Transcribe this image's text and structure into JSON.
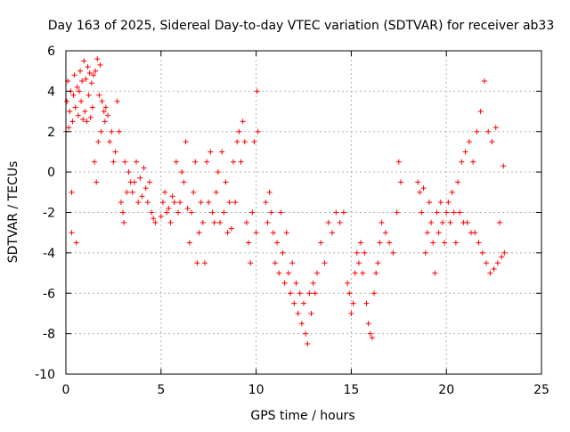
{
  "chart_data": {
    "type": "scatter",
    "title": "Day 163 of 2025, Sidereal Day-to-day VTEC variation (SDTVAR) for receiver ab33",
    "xlabel": "GPS time / hours",
    "ylabel": "SDTVAR / TECUs",
    "xlim": [
      0,
      25
    ],
    "ylim": [
      -10,
      6
    ],
    "x_ticks": [
      0,
      5,
      10,
      15,
      20,
      25
    ],
    "y_ticks": [
      -10,
      -8,
      -6,
      -4,
      -2,
      0,
      2,
      4,
      6
    ],
    "x_tick_labels": [
      "0",
      "5",
      "10",
      "15",
      "20",
      "25"
    ],
    "y_tick_labels": [
      "-10",
      "-8",
      "-6",
      "-4",
      "-2",
      "0",
      "2",
      "4",
      "6"
    ],
    "grid": true,
    "marker": "+",
    "color": "#ff0000",
    "series": [
      {
        "name": "SDTVAR",
        "points": [
          [
            0.0,
            2.0
          ],
          [
            0.05,
            3.5
          ],
          [
            0.1,
            4.5
          ],
          [
            0.15,
            2.2
          ],
          [
            0.2,
            3.0
          ],
          [
            0.25,
            4.0
          ],
          [
            0.3,
            -1.0
          ],
          [
            0.3,
            -3.0
          ],
          [
            0.35,
            2.5
          ],
          [
            0.4,
            3.8
          ],
          [
            0.45,
            4.8
          ],
          [
            0.5,
            3.2
          ],
          [
            0.55,
            -3.5
          ],
          [
            0.6,
            4.2
          ],
          [
            0.65,
            2.8
          ],
          [
            0.7,
            4.0
          ],
          [
            0.75,
            5.0
          ],
          [
            0.8,
            3.5
          ],
          [
            0.85,
            4.5
          ],
          [
            0.9,
            2.6
          ],
          [
            0.95,
            5.5
          ],
          [
            1.0,
            3.0
          ],
          [
            1.05,
            4.6
          ],
          [
            1.1,
            2.5
          ],
          [
            1.15,
            5.2
          ],
          [
            1.2,
            3.8
          ],
          [
            1.25,
            4.9
          ],
          [
            1.3,
            2.7
          ],
          [
            1.35,
            4.4
          ],
          [
            1.4,
            3.2
          ],
          [
            1.45,
            4.8
          ],
          [
            1.5,
            0.5
          ],
          [
            1.55,
            5.0
          ],
          [
            1.6,
            -0.5
          ],
          [
            1.65,
            5.6
          ],
          [
            1.7,
            1.5
          ],
          [
            1.75,
            3.8
          ],
          [
            1.8,
            5.3
          ],
          [
            1.85,
            2.0
          ],
          [
            1.9,
            3.5
          ],
          [
            2.0,
            3.0
          ],
          [
            2.05,
            2.5
          ],
          [
            2.1,
            3.2
          ],
          [
            2.2,
            2.8
          ],
          [
            2.3,
            1.5
          ],
          [
            2.4,
            2.0
          ],
          [
            2.5,
            0.5
          ],
          [
            2.6,
            1.0
          ],
          [
            2.7,
            3.5
          ],
          [
            2.8,
            2.0
          ],
          [
            2.9,
            -1.5
          ],
          [
            3.0,
            -2.0
          ],
          [
            3.05,
            -2.5
          ],
          [
            3.1,
            0.5
          ],
          [
            3.2,
            -1.0
          ],
          [
            3.3,
            0.0
          ],
          [
            3.4,
            -0.5
          ],
          [
            3.5,
            -1.0
          ],
          [
            3.6,
            -0.5
          ],
          [
            3.7,
            0.5
          ],
          [
            3.8,
            -1.5
          ],
          [
            3.9,
            -0.3
          ],
          [
            4.0,
            -1.2
          ],
          [
            4.1,
            0.2
          ],
          [
            4.2,
            -0.8
          ],
          [
            4.3,
            -1.5
          ],
          [
            4.4,
            -0.5
          ],
          [
            4.5,
            -2.0
          ],
          [
            4.6,
            -2.3
          ],
          [
            4.7,
            -2.5
          ],
          [
            5.0,
            -2.2
          ],
          [
            5.1,
            -1.5
          ],
          [
            5.2,
            -1.0
          ],
          [
            5.3,
            -2.0
          ],
          [
            5.4,
            -1.8
          ],
          [
            5.5,
            -2.5
          ],
          [
            5.6,
            -1.2
          ],
          [
            5.7,
            -1.5
          ],
          [
            5.8,
            0.5
          ],
          [
            5.9,
            -2.0
          ],
          [
            6.0,
            -1.5
          ],
          [
            6.1,
            0.0
          ],
          [
            6.2,
            -0.5
          ],
          [
            6.3,
            1.5
          ],
          [
            6.4,
            -1.8
          ],
          [
            6.5,
            -3.5
          ],
          [
            6.6,
            -2.0
          ],
          [
            6.7,
            -1.0
          ],
          [
            6.8,
            0.5
          ],
          [
            6.9,
            -4.5
          ],
          [
            7.0,
            -3.0
          ],
          [
            7.1,
            -1.5
          ],
          [
            7.2,
            -2.5
          ],
          [
            7.3,
            -4.5
          ],
          [
            7.4,
            0.5
          ],
          [
            7.5,
            -1.5
          ],
          [
            7.6,
            1.0
          ],
          [
            7.7,
            -2.0
          ],
          [
            7.8,
            -2.5
          ],
          [
            7.9,
            -1.0
          ],
          [
            8.0,
            0.0
          ],
          [
            8.1,
            -2.5
          ],
          [
            8.2,
            1.0
          ],
          [
            8.3,
            -2.0
          ],
          [
            8.4,
            -0.5
          ],
          [
            8.5,
            -3.0
          ],
          [
            8.6,
            -1.5
          ],
          [
            8.7,
            -2.8
          ],
          [
            8.8,
            0.5
          ],
          [
            8.9,
            -1.5
          ],
          [
            9.0,
            1.5
          ],
          [
            9.1,
            2.0
          ],
          [
            9.2,
            0.5
          ],
          [
            9.3,
            2.5
          ],
          [
            9.4,
            1.5
          ],
          [
            9.5,
            -2.5
          ],
          [
            9.6,
            -3.5
          ],
          [
            9.7,
            -4.5
          ],
          [
            9.8,
            -2.0
          ],
          [
            9.9,
            1.5
          ],
          [
            10.0,
            -3.0
          ],
          [
            10.05,
            4.0
          ],
          [
            10.1,
            2.0
          ],
          [
            10.5,
            -1.5
          ],
          [
            10.6,
            -2.5
          ],
          [
            10.7,
            -1.0
          ],
          [
            10.8,
            -2.0
          ],
          [
            10.9,
            -3.0
          ],
          [
            11.0,
            -4.5
          ],
          [
            11.1,
            -3.5
          ],
          [
            11.2,
            -5.0
          ],
          [
            11.3,
            -2.0
          ],
          [
            11.4,
            -4.0
          ],
          [
            11.5,
            -5.5
          ],
          [
            11.6,
            -3.0
          ],
          [
            11.7,
            -5.0
          ],
          [
            11.8,
            -6.0
          ],
          [
            11.9,
            -4.5
          ],
          [
            12.0,
            -6.5
          ],
          [
            12.1,
            -5.5
          ],
          [
            12.2,
            -7.0
          ],
          [
            12.3,
            -6.0
          ],
          [
            12.4,
            -7.5
          ],
          [
            12.5,
            -6.5
          ],
          [
            12.6,
            -8.0
          ],
          [
            12.7,
            -8.5
          ],
          [
            12.8,
            -6.0
          ],
          [
            12.9,
            -7.0
          ],
          [
            13.0,
            -5.5
          ],
          [
            13.1,
            -6.0
          ],
          [
            13.2,
            -5.0
          ],
          [
            13.4,
            -3.5
          ],
          [
            13.6,
            -4.5
          ],
          [
            13.8,
            -2.5
          ],
          [
            14.0,
            -3.0
          ],
          [
            14.2,
            -2.0
          ],
          [
            14.4,
            -2.5
          ],
          [
            14.6,
            -2.0
          ],
          [
            14.8,
            -5.5
          ],
          [
            14.9,
            -6.0
          ],
          [
            15.0,
            -7.0
          ],
          [
            15.1,
            -6.5
          ],
          [
            15.2,
            -5.0
          ],
          [
            15.3,
            -4.0
          ],
          [
            15.4,
            -4.5
          ],
          [
            15.5,
            -3.5
          ],
          [
            15.6,
            -5.0
          ],
          [
            15.7,
            -4.0
          ],
          [
            15.8,
            -6.5
          ],
          [
            15.9,
            -7.5
          ],
          [
            16.0,
            -8.0
          ],
          [
            16.1,
            -8.2
          ],
          [
            16.2,
            -6.0
          ],
          [
            16.3,
            -5.0
          ],
          [
            16.4,
            -4.5
          ],
          [
            16.5,
            -3.5
          ],
          [
            16.6,
            -2.5
          ],
          [
            16.8,
            -3.0
          ],
          [
            17.0,
            -3.5
          ],
          [
            17.2,
            -4.0
          ],
          [
            17.4,
            -2.0
          ],
          [
            17.5,
            0.5
          ],
          [
            17.6,
            -0.5
          ],
          [
            18.5,
            -0.5
          ],
          [
            18.6,
            -1.0
          ],
          [
            18.7,
            -2.0
          ],
          [
            18.8,
            -0.8
          ],
          [
            18.9,
            -4.0
          ],
          [
            19.0,
            -3.0
          ],
          [
            19.1,
            -1.5
          ],
          [
            19.2,
            -2.5
          ],
          [
            19.3,
            -3.5
          ],
          [
            19.4,
            -5.0
          ],
          [
            19.5,
            -2.0
          ],
          [
            19.6,
            -3.0
          ],
          [
            19.7,
            -1.5
          ],
          [
            19.8,
            -2.5
          ],
          [
            19.9,
            -3.5
          ],
          [
            20.0,
            -2.0
          ],
          [
            20.1,
            -1.5
          ],
          [
            20.2,
            -2.5
          ],
          [
            20.3,
            -1.0
          ],
          [
            20.4,
            -2.0
          ],
          [
            20.5,
            -3.5
          ],
          [
            20.6,
            -0.5
          ],
          [
            20.7,
            -2.0
          ],
          [
            20.8,
            0.5
          ],
          [
            20.9,
            -2.5
          ],
          [
            21.0,
            1.0
          ],
          [
            21.1,
            -2.5
          ],
          [
            21.2,
            1.5
          ],
          [
            21.3,
            -3.0
          ],
          [
            21.4,
            0.5
          ],
          [
            21.5,
            -3.0
          ],
          [
            21.6,
            2.0
          ],
          [
            21.7,
            -3.5
          ],
          [
            21.8,
            3.0
          ],
          [
            21.9,
            -4.0
          ],
          [
            22.0,
            4.5
          ],
          [
            22.1,
            -4.5
          ],
          [
            22.2,
            2.0
          ],
          [
            22.3,
            -5.0
          ],
          [
            22.4,
            1.5
          ],
          [
            22.5,
            -4.8
          ],
          [
            22.6,
            2.2
          ],
          [
            22.7,
            -4.5
          ],
          [
            22.8,
            -2.5
          ],
          [
            22.9,
            -4.2
          ],
          [
            23.0,
            0.3
          ],
          [
            23.05,
            -4.0
          ]
        ]
      }
    ]
  }
}
